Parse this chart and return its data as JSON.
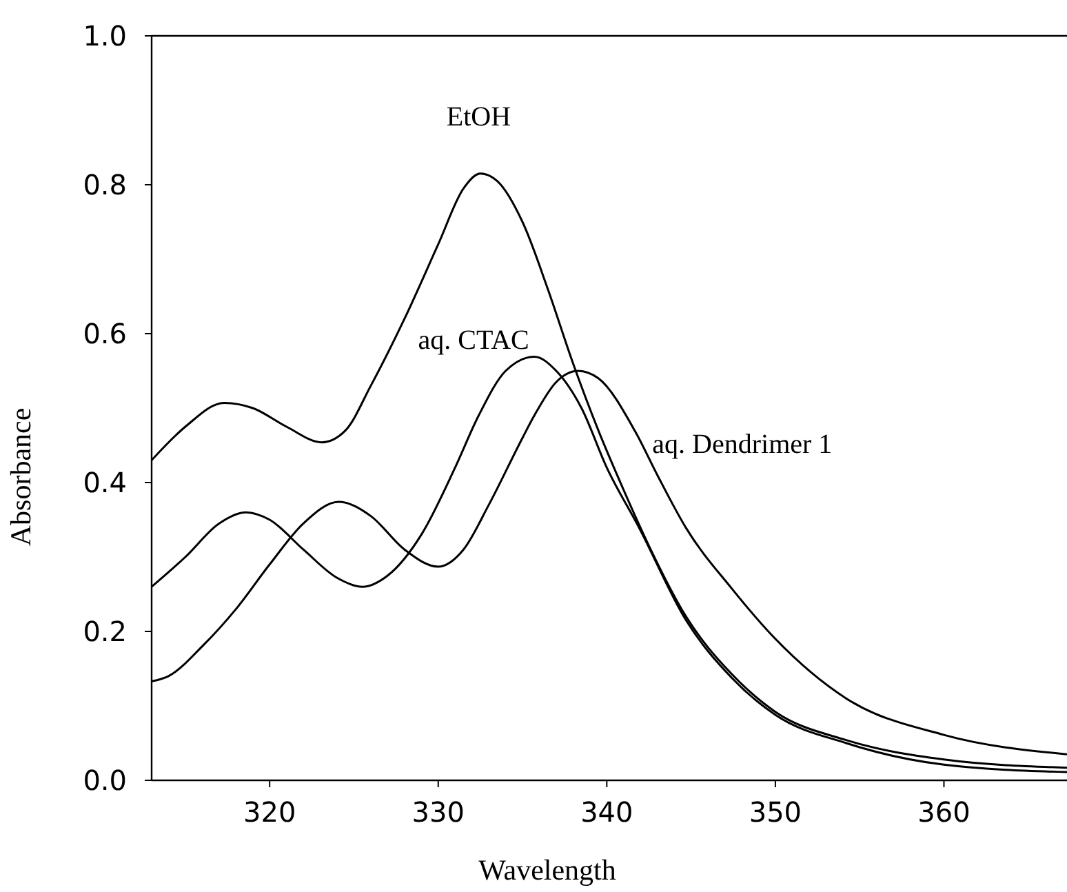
{
  "chart_data": {
    "type": "line",
    "xlabel": "Wavelength",
    "ylabel": "Absorbance",
    "xlim": [
      313,
      367.3
    ],
    "ylim": [
      0,
      1
    ],
    "xticks": [
      320,
      330,
      340,
      350,
      360
    ],
    "yticks": [
      {
        "value": 0,
        "label": "0.0"
      },
      0.2,
      0.4,
      0.6,
      0.8,
      {
        "value": 1,
        "label": "1.0"
      }
    ],
    "grid": false,
    "legend": false,
    "marker": "none",
    "line_style": "solid",
    "series": [
      {
        "name": "EtOH",
        "color": "#000000",
        "x": [
          313,
          315,
          317.3,
          319,
          321,
          323.1,
          324.5,
          326,
          328,
          330,
          331.5,
          332.5,
          333.5,
          335,
          336.5,
          338,
          339.5,
          341,
          342.5,
          344.7,
          347.4,
          350,
          354.2,
          360,
          367.3
        ],
        "values": [
          0.43,
          0.475,
          0.507,
          0.5,
          0.475,
          0.454,
          0.47,
          0.53,
          0.62,
          0.72,
          0.795,
          0.815,
          0.805,
          0.75,
          0.66,
          0.56,
          0.47,
          0.39,
          0.315,
          0.22,
          0.143,
          0.092,
          0.054,
          0.028,
          0.017
        ]
      },
      {
        "name": "aq. CTAC",
        "color": "#000000",
        "x": [
          313,
          315,
          317,
          318.6,
          320,
          322,
          324,
          325.5,
          327,
          329,
          331,
          332.4,
          334,
          335.7,
          337,
          338.5,
          340,
          341.9,
          344.7,
          347.4,
          350,
          354.2,
          360,
          367.3
        ],
        "values": [
          0.26,
          0.3,
          0.345,
          0.36,
          0.35,
          0.31,
          0.272,
          0.26,
          0.275,
          0.33,
          0.42,
          0.49,
          0.55,
          0.569,
          0.55,
          0.5,
          0.42,
          0.34,
          0.215,
          0.138,
          0.088,
          0.05,
          0.021,
          0.011
        ]
      },
      {
        "name": "aq. Dendrimer 1",
        "color": "#000000",
        "x": [
          313,
          314,
          316,
          318,
          320,
          322,
          324.1,
          326,
          328,
          330,
          331.5,
          333,
          335,
          335.7,
          337,
          338.3,
          339.5,
          341.7,
          343,
          344.7,
          347.4,
          350,
          354.2,
          360,
          367.3
        ],
        "values": [
          0.133,
          0.14,
          0.18,
          0.23,
          0.29,
          0.345,
          0.374,
          0.355,
          0.31,
          0.287,
          0.31,
          0.37,
          0.46,
          0.49,
          0.535,
          0.55,
          0.54,
          0.468,
          0.41,
          0.339,
          0.258,
          0.19,
          0.11,
          0.061,
          0.035
        ]
      }
    ]
  }
}
